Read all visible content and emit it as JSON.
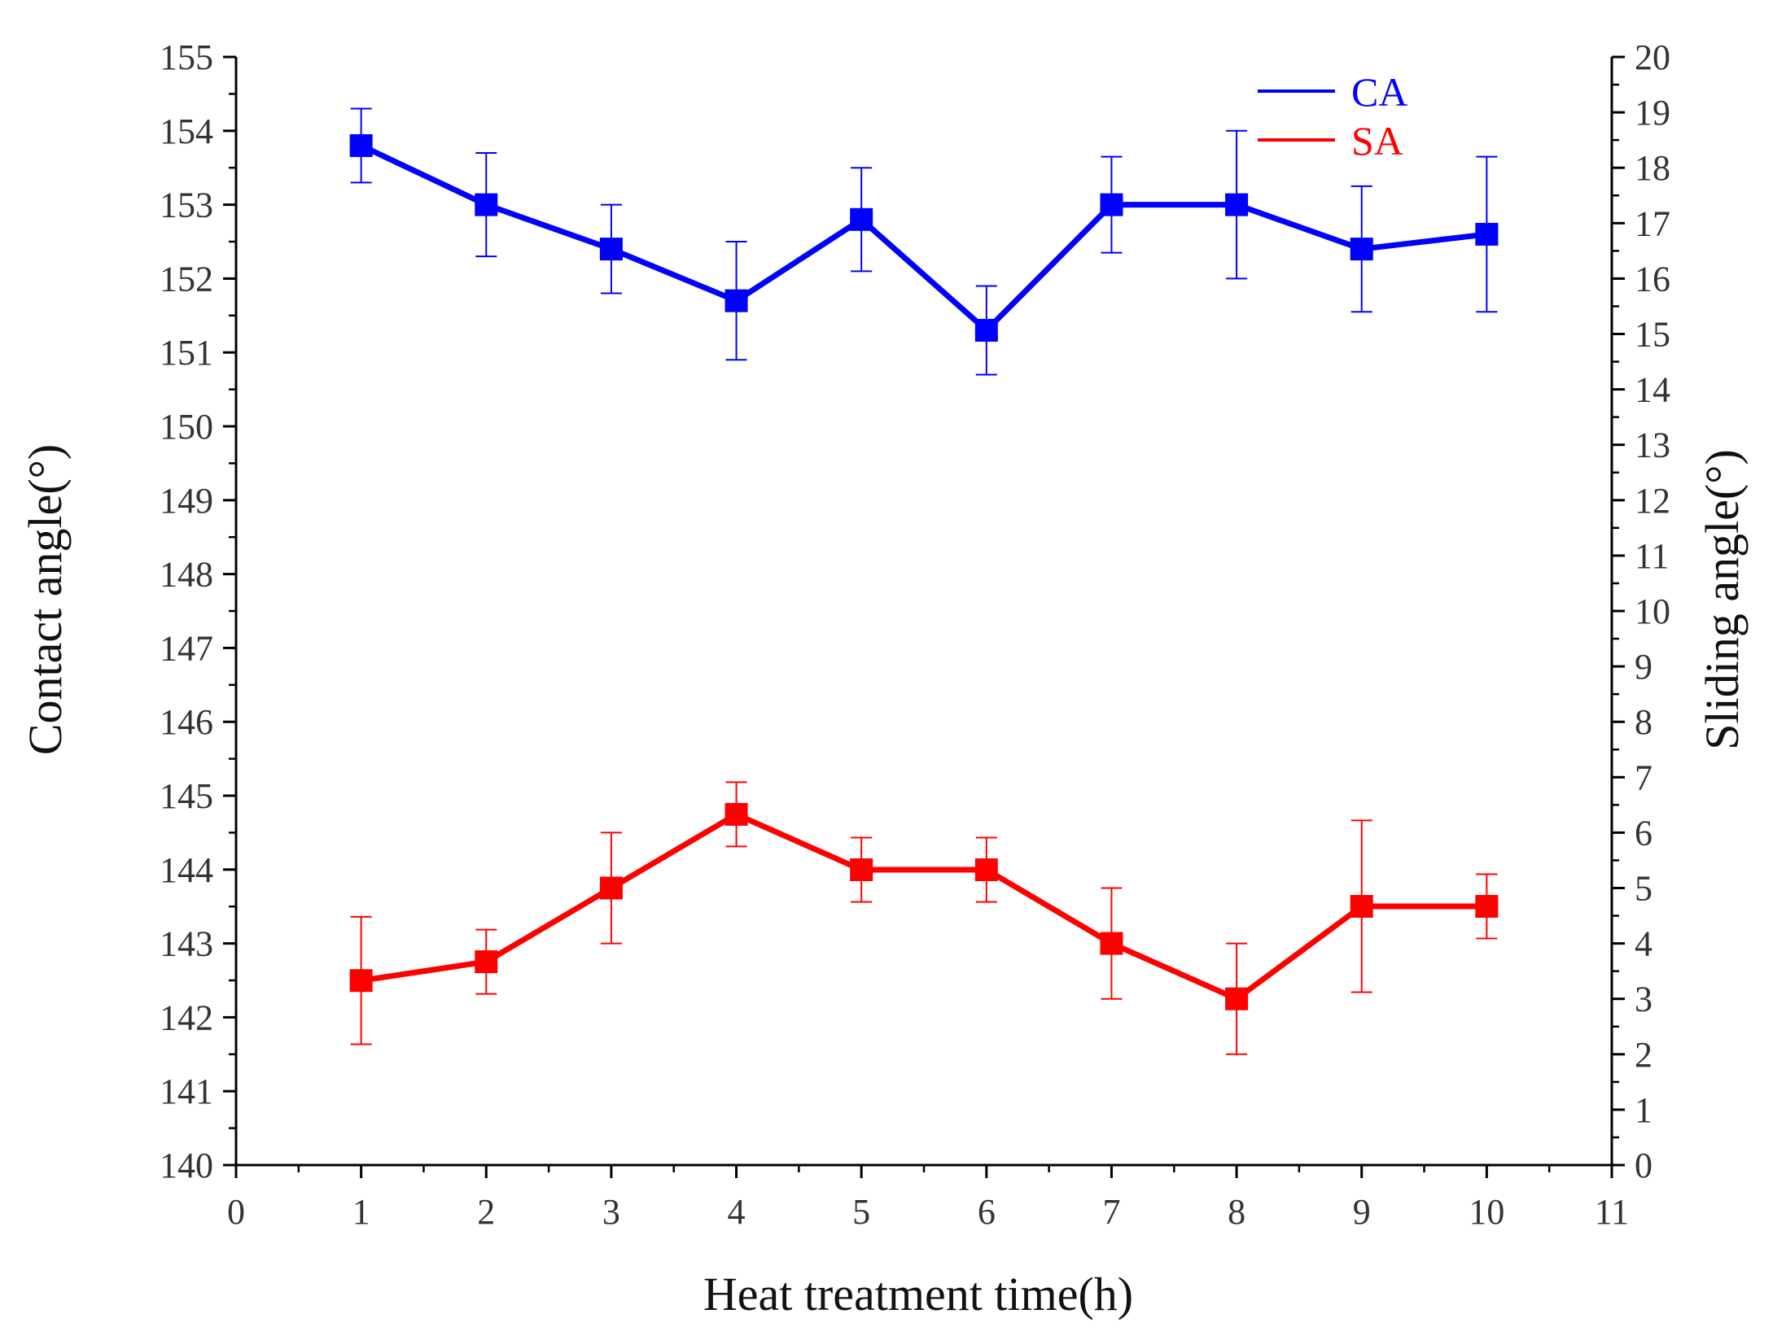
{
  "chart_data": {
    "type": "line",
    "title": "",
    "xlabel": "Heat treatment time(h)",
    "ylabel_left": "Contact angle(°)",
    "ylabel_right": "Sliding angle(°)",
    "xlim": [
      0,
      11
    ],
    "ylim_left": [
      140,
      155
    ],
    "ylim_right": [
      0,
      20
    ],
    "x_ticks": [
      "0",
      "1",
      "2",
      "3",
      "4",
      "5",
      "6",
      "7",
      "8",
      "9",
      "10",
      "11"
    ],
    "y_left_ticks": [
      "140",
      "141",
      "142",
      "143",
      "144",
      "145",
      "146",
      "147",
      "148",
      "149",
      "150",
      "151",
      "152",
      "153",
      "154",
      "155"
    ],
    "y_right_ticks": [
      "0",
      "1",
      "2",
      "3",
      "4",
      "5",
      "6",
      "7",
      "8",
      "9",
      "10",
      "11",
      "12",
      "13",
      "14",
      "15",
      "16",
      "17",
      "18",
      "19",
      "20"
    ],
    "grid": false,
    "legend_position": "top-right",
    "series": [
      {
        "name": "CA",
        "axis": "left",
        "color": "#0000ff",
        "x": [
          1,
          2,
          3,
          4,
          5,
          6,
          7,
          8,
          9,
          10
        ],
        "values": [
          153.8,
          153.0,
          152.4,
          151.7,
          152.8,
          151.3,
          153.0,
          153.0,
          152.4,
          152.6
        ],
        "error": [
          0.5,
          0.7,
          0.6,
          0.8,
          0.7,
          0.6,
          0.65,
          1.0,
          0.85,
          1.05
        ]
      },
      {
        "name": "SA",
        "axis": "right",
        "color": "#ff0000",
        "x": [
          1,
          2,
          3,
          4,
          5,
          6,
          7,
          8,
          9,
          10
        ],
        "values": [
          3.33,
          3.67,
          5.0,
          6.33,
          5.33,
          5.33,
          4.0,
          3.0,
          4.67,
          4.67
        ],
        "error": [
          1.15,
          0.58,
          1.0,
          0.58,
          0.58,
          0.58,
          1.0,
          1.0,
          1.55,
          0.58
        ]
      }
    ]
  }
}
